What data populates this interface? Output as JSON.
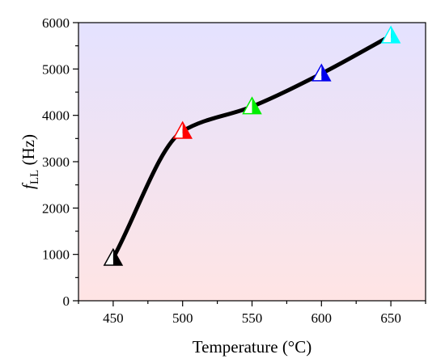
{
  "chart_data": {
    "type": "line",
    "xlabel": "Temperature (°C)",
    "ylabel_main": "f",
    "ylabel_sub": "LL",
    "ylabel_unit": " (Hz)",
    "xlim": [
      425,
      675
    ],
    "ylim": [
      0,
      6000
    ],
    "xticks": [
      450,
      500,
      550,
      600,
      650
    ],
    "yticks": [
      0,
      1000,
      2000,
      3000,
      4000,
      5000,
      6000
    ],
    "grid": false,
    "background_gradient": {
      "top": "#e4e2ff",
      "bottom": "#ffe4e4"
    },
    "line_color": "#000000",
    "points": [
      {
        "x": 450,
        "y": 920,
        "color": "#000000"
      },
      {
        "x": 500,
        "y": 3660,
        "color": "#ff0000"
      },
      {
        "x": 550,
        "y": 4190,
        "color": "#00ee00"
      },
      {
        "x": 600,
        "y": 4900,
        "color": "#0000ee"
      },
      {
        "x": 650,
        "y": 5720,
        "color": "#00ffff"
      }
    ]
  }
}
